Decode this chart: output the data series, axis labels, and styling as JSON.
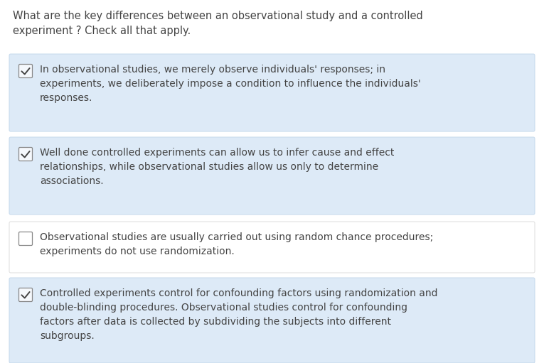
{
  "background_color": "#ffffff",
  "question_text": "What are the key differences between an observational study and a controlled\nexperiment ? Check all that apply.",
  "question_font_size": 10.5,
  "question_color": "#444444",
  "options": [
    {
      "text": "In observational studies, we merely observe individuals' responses; in\nexperiments, we deliberately impose a condition to influence the individuals'\nresponses.",
      "checked": true,
      "bg_color": "#ddeaf7"
    },
    {
      "text": "Well done controlled experiments can allow us to infer cause and effect\nrelationships, while observational studies allow us only to determine\nassociations.",
      "checked": true,
      "bg_color": "#ddeaf7"
    },
    {
      "text": "Observational studies are usually carried out using random chance procedures;\nexperiments do not use randomization.",
      "checked": false,
      "bg_color": "#ffffff"
    },
    {
      "text": "Controlled experiments control for confounding factors using randomization and\ndouble-blinding procedures. Observational studies control for confounding\nfactors after data is collected by subdividing the subjects into different\nsubgroups.",
      "checked": true,
      "bg_color": "#ddeaf7"
    }
  ],
  "option_font_size": 10.0,
  "option_text_color": "#444444",
  "checkbox_edge_color": "#888888",
  "check_color": "#444444",
  "checked_bg": "#f5f8fc",
  "unchecked_bg": "#ffffff",
  "border_color": "#c5d8ec",
  "white_border_color": "#dddddd"
}
